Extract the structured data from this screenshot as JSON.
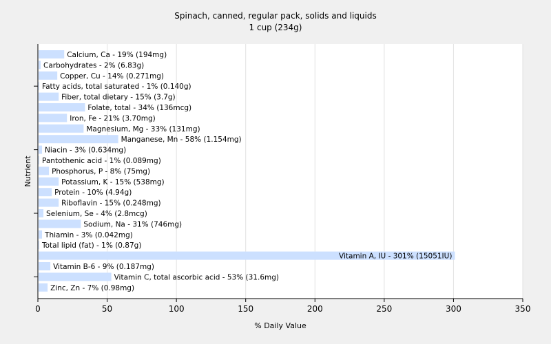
{
  "chart_data": {
    "type": "bar",
    "orientation": "horizontal",
    "title": "Spinach, canned, regular pack, solids and liquids",
    "subtitle": "1 cup (234g)",
    "xlabel": "% Daily Value",
    "ylabel": "Nutrient",
    "xlim": [
      0,
      350
    ],
    "xticks": [
      0,
      50,
      100,
      150,
      200,
      250,
      300,
      350
    ],
    "grid": true,
    "bar_color": "#cce0ff",
    "categories": [
      "Calcium, Ca",
      "Carbohydrates",
      "Copper, Cu",
      "Fatty acids, total saturated",
      "Fiber, total dietary",
      "Folate, total",
      "Iron, Fe",
      "Magnesium, Mg",
      "Manganese, Mn",
      "Niacin",
      "Pantothenic acid",
      "Phosphorus, P",
      "Potassium, K",
      "Protein",
      "Riboflavin",
      "Selenium, Se",
      "Sodium, Na",
      "Thiamin",
      "Total lipid (fat)",
      "Vitamin A, IU",
      "Vitamin B-6",
      "Vitamin C, total ascorbic acid",
      "Zinc, Zn"
    ],
    "values": [
      19,
      2,
      14,
      1,
      15,
      34,
      21,
      33,
      58,
      3,
      1,
      8,
      15,
      10,
      15,
      4,
      31,
      3,
      1,
      301,
      9,
      53,
      7
    ],
    "labels": [
      "Calcium, Ca - 19% (194mg)",
      "Carbohydrates - 2% (6.83g)",
      "Copper, Cu - 14% (0.271mg)",
      "Fatty acids, total saturated - 1% (0.140g)",
      "Fiber, total dietary - 15% (3.7g)",
      "Folate, total - 34% (136mcg)",
      "Iron, Fe - 21% (3.70mg)",
      "Magnesium, Mg - 33% (131mg)",
      "Manganese, Mn - 58% (1.154mg)",
      "Niacin - 3% (0.634mg)",
      "Pantothenic acid - 1% (0.089mg)",
      "Phosphorus, P - 8% (75mg)",
      "Potassium, K - 15% (538mg)",
      "Protein - 10% (4.94g)",
      "Riboflavin - 15% (0.248mg)",
      "Selenium, Se - 4% (2.8mcg)",
      "Sodium, Na - 31% (746mg)",
      "Thiamin - 3% (0.042mg)",
      "Total lipid (fat) - 1% (0.87g)",
      "Vitamin A, IU - 301% (15051IU)",
      "Vitamin B-6 - 9% (0.187mg)",
      "Vitamin C, total ascorbic acid - 53% (31.6mg)",
      "Zinc, Zn - 7% (0.98mg)"
    ]
  }
}
